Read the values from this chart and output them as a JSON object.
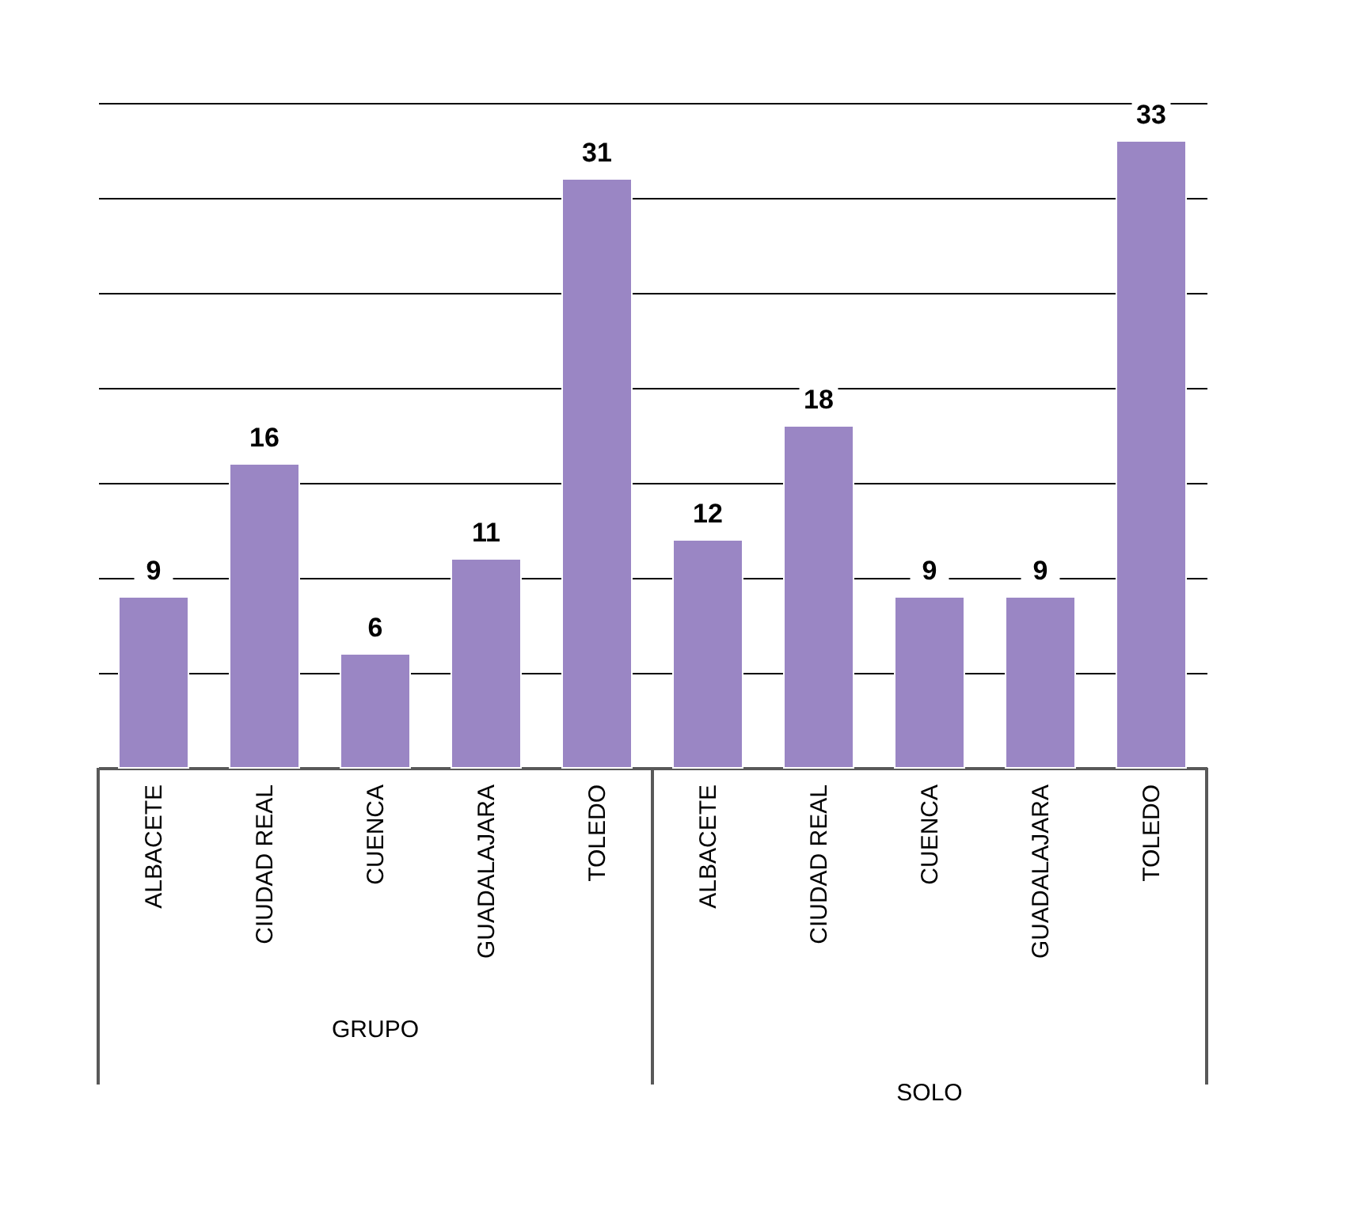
{
  "chart_data": {
    "type": "bar",
    "categories": [
      "ALBACETE",
      "CIUDAD REAL",
      "CUENCA",
      "GUADALAJARA",
      "TOLEDO",
      "ALBACETE",
      "CIUDAD REAL",
      "CUENCA",
      "GUADALAJARA",
      "TOLEDO"
    ],
    "values": [
      9,
      16,
      6,
      11,
      31,
      12,
      18,
      9,
      9,
      33
    ],
    "color": "#9a86c4",
    "data_labels": true,
    "ylim": [
      0,
      35
    ],
    "yticks": [
      {
        "value": 0,
        "label": null
      },
      {
        "value": 5,
        "label": null
      },
      {
        "value": 10,
        "label": null
      },
      {
        "value": 15,
        "label": null
      },
      {
        "value": 20,
        "label": null
      },
      {
        "value": 25,
        "label": null
      },
      {
        "value": 30,
        "label": null
      },
      {
        "value": 35,
        "label": null
      }
    ],
    "grid": "y",
    "annotations": [
      "GRUPO",
      "SOLO"
    ]
  }
}
